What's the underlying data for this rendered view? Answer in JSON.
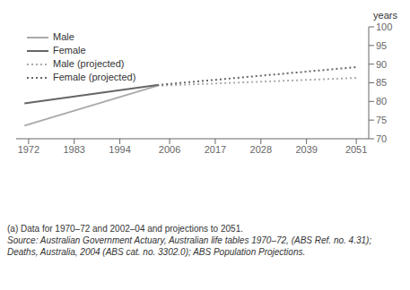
{
  "chart_data": {
    "type": "line",
    "x": [
      1971,
      2003,
      2051
    ],
    "series": [
      {
        "name": "Male",
        "color": "#aaaaaa",
        "line_style": "solid",
        "values": [
          73.5,
          84.2,
          null
        ]
      },
      {
        "name": "Female",
        "color": "#666666",
        "line_style": "solid",
        "values": [
          79.5,
          84.4,
          null
        ]
      },
      {
        "name": "Male (projected)",
        "color": "#aaaaaa",
        "line_style": "dotted",
        "values": [
          null,
          84.2,
          86.3
        ]
      },
      {
        "name": "Female (projected)",
        "color": "#666666",
        "line_style": "dotted",
        "values": [
          null,
          84.4,
          89.2
        ]
      }
    ],
    "xlim": [
      1969,
      2054
    ],
    "ylim": [
      70,
      100
    ],
    "xticks": [
      1972,
      1983,
      1994,
      2006,
      2017,
      2028,
      2039,
      2051
    ],
    "yticks": [
      70,
      75,
      80,
      85,
      90,
      95,
      100
    ],
    "ylabel": "years",
    "legend": "upper left",
    "grid": false,
    "annotations": [
      "(a) Data for 1970–72 and 2002–04 and projections to 2051.",
      "Source: Australian Government Actuary, Australian life tables 1970–72, (ABS Ref. no. 4.31);",
      "Deaths, Australia, 2004 (ABS cat. no. 3302.0); ABS Population Projections."
    ]
  }
}
